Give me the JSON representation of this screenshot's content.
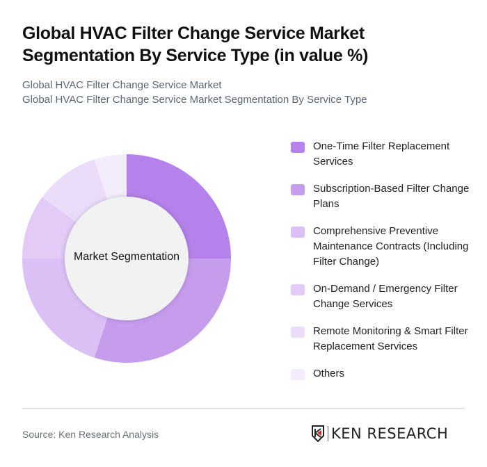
{
  "header": {
    "title": "Global HVAC Filter Change Service Market Segmentation By Service Type (in value %)",
    "subtitle_line1": "Global HVAC Filter Change Service Market",
    "subtitle_line2": "Global HVAC Filter Change Service Market Segmentation By Service Type"
  },
  "chart_data": {
    "type": "pie",
    "subtype": "donut",
    "title": "Global HVAC Filter Change Service Market Segmentation By Service Type (in value %)",
    "center_label": "Market Segmentation",
    "categories": [
      "One-Time Filter Replacement Services",
      "Subscription-Based Filter Change Plans",
      "Comprehensive Preventive Maintenance Contracts (Including Filter Change)",
      "On-Demand / Emergency Filter Change Services",
      "Remote Monitoring & Smart Filter Replacement Services",
      "Others"
    ],
    "values": [
      25,
      30,
      20,
      10,
      10,
      5
    ],
    "colors": [
      "#b482ea",
      "#c69ced",
      "#dbc0f6",
      "#e2cbf7",
      "#ebdcfa",
      "#f3ecfc"
    ],
    "legend_position": "right",
    "start_angle": "12 o'clock, clockwise"
  },
  "legend": {
    "items": [
      {
        "label": "One-Time Filter Replacement Services",
        "color": "#b482ea"
      },
      {
        "label": "Subscription-Based Filter Change Plans",
        "color": "#c69ced"
      },
      {
        "label": "Comprehensive Preventive Maintenance Contracts (Including Filter Change)",
        "color": "#dbc0f6"
      },
      {
        "label": "On-Demand / Emergency Filter Change Services",
        "color": "#e2cbf7"
      },
      {
        "label": "Remote Monitoring & Smart Filter Replacement Services",
        "color": "#ebdcfa"
      },
      {
        "label": "Others",
        "color": "#f3ecfc"
      }
    ]
  },
  "footer": {
    "source": "Source: Ken Research Analysis",
    "logo_text": "KEN RESEARCH",
    "logo_icon": "ken-research-shield-icon"
  }
}
